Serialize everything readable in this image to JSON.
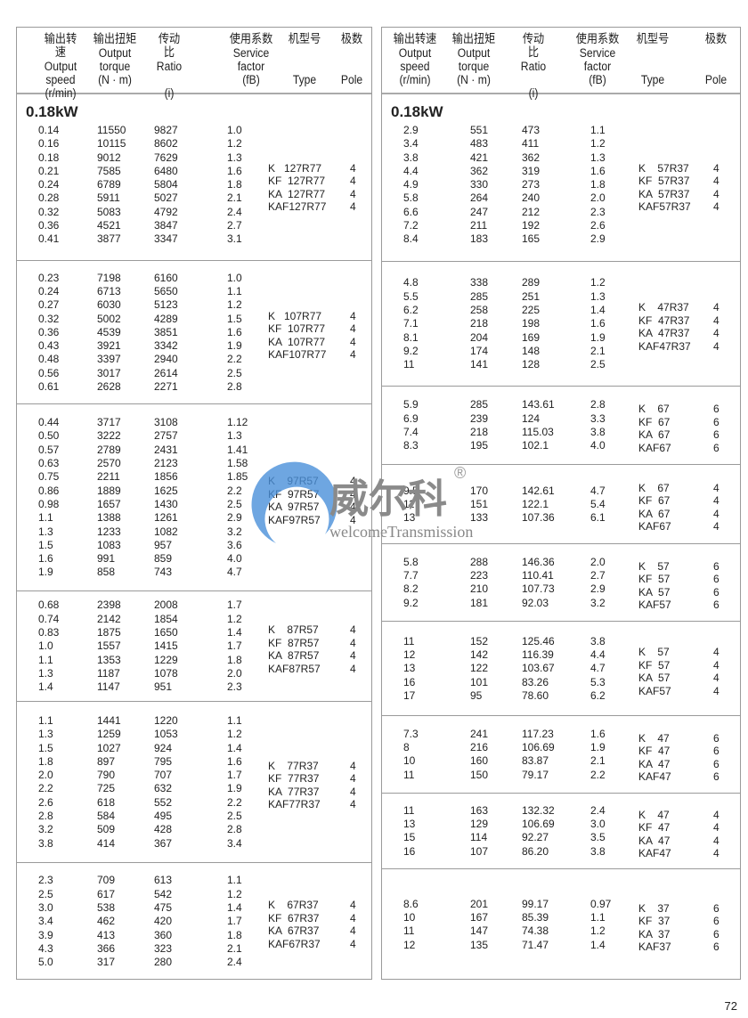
{
  "header": {
    "cn": [
      "输出转速",
      "输出扭矩",
      "传动比",
      "使用系数",
      "机型号",
      "极数"
    ],
    "en": [
      "Output\nspeed\n(r/min)",
      "Output\ntorque\n(N · m)",
      "Ratio\n\n(i)",
      "Service\nfactor\n(fB)",
      "\n\nType",
      "\n\nPole"
    ]
  },
  "power_label": "0.18kW",
  "page_number": "72",
  "logo": {
    "cn": "威尔科",
    "en": "welcomeTransmission",
    "mark": "®",
    "colors": [
      "#4a90d9",
      "#8a8a8a"
    ]
  },
  "left": [
    {
      "rows": [
        [
          "0.14",
          "11550",
          "9827",
          "1.0"
        ],
        [
          "0.16",
          "10115",
          "8602",
          "1.2"
        ],
        [
          "0.18",
          "9012",
          "7629",
          "1.3"
        ],
        [
          "0.21",
          "7585",
          "6480",
          "1.6"
        ],
        [
          "0.24",
          "6789",
          "5804",
          "1.8"
        ],
        [
          "0.28",
          "5911",
          "5027",
          "2.1"
        ],
        [
          "0.32",
          "5083",
          "4792",
          "2.4"
        ],
        [
          "0.36",
          "4521",
          "3847",
          "2.7"
        ],
        [
          "0.41",
          "3877",
          "3347",
          "3.1"
        ]
      ],
      "types": [
        "K   127R77",
        "KF  127R77",
        "KA  127R77",
        "KAF127R77"
      ],
      "pole": "4"
    },
    {
      "rows": [
        [
          "0.23",
          "7198",
          "6160",
          "1.0"
        ],
        [
          "0.24",
          "6713",
          "5650",
          "1.1"
        ],
        [
          "0.27",
          "6030",
          "5123",
          "1.2"
        ],
        [
          "0.32",
          "5002",
          "4289",
          "1.5"
        ],
        [
          "0.36",
          "4539",
          "3851",
          "1.6"
        ],
        [
          "0.43",
          "3921",
          "3342",
          "1.9"
        ],
        [
          "0.48",
          "3397",
          "2940",
          "2.2"
        ],
        [
          "0.56",
          "3017",
          "2614",
          "2.5"
        ],
        [
          "0.61",
          "2628",
          "2271",
          "2.8"
        ]
      ],
      "types": [
        "K   107R77",
        "KF  107R77",
        "KA  107R77",
        "KAF107R77"
      ],
      "pole": "4"
    },
    {
      "rows": [
        [
          "0.44",
          "3717",
          "3108",
          "1.12"
        ],
        [
          "0.50",
          "3222",
          "2757",
          "1.3"
        ],
        [
          "0.57",
          "2789",
          "2431",
          "1.41"
        ],
        [
          "0.63",
          "2570",
          "2123",
          "1.58"
        ],
        [
          "0.75",
          "2211",
          "1856",
          "1.85"
        ],
        [
          "0.86",
          "1889",
          "1625",
          "2.2"
        ],
        [
          "0.98",
          "1657",
          "1430",
          "2.5"
        ],
        [
          "1.1",
          "1388",
          "1261",
          "2.9"
        ],
        [
          "1.3",
          "1233",
          "1082",
          "3.2"
        ],
        [
          "1.5",
          "1083",
          "957",
          "3.6"
        ],
        [
          "1.6",
          "991",
          "859",
          "4.0"
        ],
        [
          "1.9",
          "858",
          "743",
          "4.7"
        ]
      ],
      "types": [
        "K    97R57",
        "KF  97R57",
        "KA  97R57",
        "KAF97R57"
      ],
      "pole": "4"
    },
    {
      "rows": [
        [
          "0.68",
          "2398",
          "2008",
          "1.7"
        ],
        [
          "0.74",
          "2142",
          "1854",
          "1.2"
        ],
        [
          "0.83",
          "1875",
          "1650",
          "1.4"
        ],
        [
          "1.0",
          "1557",
          "1415",
          "1.7"
        ],
        [
          "1.1",
          "1353",
          "1229",
          "1.8"
        ],
        [
          "1.3",
          "1187",
          "1078",
          "2.0"
        ],
        [
          "1.4",
          "1147",
          "951",
          "2.3"
        ]
      ],
      "types": [
        "K    87R57",
        "KF  87R57",
        "KA  87R57",
        "KAF87R57"
      ],
      "pole": "4"
    },
    {
      "rows": [
        [
          "1.1",
          "1441",
          "1220",
          "1.1"
        ],
        [
          "1.3",
          "1259",
          "1053",
          "1.2"
        ],
        [
          "1.5",
          "1027",
          "924",
          "1.4"
        ],
        [
          "1.8",
          "897",
          "795",
          "1.6"
        ],
        [
          "2.0",
          "790",
          "707",
          "1.7"
        ],
        [
          "2.2",
          "725",
          "632",
          "1.9"
        ],
        [
          "2.6",
          "618",
          "552",
          "2.2"
        ],
        [
          "2.8",
          "584",
          "495",
          "2.5"
        ],
        [
          "3.2",
          "509",
          "428",
          "2.8"
        ],
        [
          "3.8",
          "414",
          "367",
          "3.4"
        ]
      ],
      "types": [
        "K    77R37",
        "KF  77R37",
        "KA  77R37",
        "KAF77R37"
      ],
      "pole": "4"
    },
    {
      "rows": [
        [
          "2.3",
          "709",
          "613",
          "1.1"
        ],
        [
          "2.5",
          "617",
          "542",
          "1.2"
        ],
        [
          "3.0",
          "538",
          "475",
          "1.4"
        ],
        [
          "3.4",
          "462",
          "420",
          "1.7"
        ],
        [
          "3.9",
          "413",
          "360",
          "1.8"
        ],
        [
          "4.3",
          "366",
          "323",
          "2.1"
        ],
        [
          "5.0",
          "317",
          "280",
          "2.4"
        ]
      ],
      "types": [
        "K    67R37",
        "KF  67R37",
        "KA  67R37",
        "KAF67R37"
      ],
      "pole": "4"
    }
  ],
  "right": [
    {
      "rows": [
        [
          "2.9",
          "551",
          "473",
          "1.1"
        ],
        [
          "3.4",
          "483",
          "411",
          "1.2"
        ],
        [
          "3.8",
          "421",
          "362",
          "1.3"
        ],
        [
          "4.4",
          "362",
          "319",
          "1.6"
        ],
        [
          "4.9",
          "330",
          "273",
          "1.8"
        ],
        [
          "5.8",
          "264",
          "240",
          "2.0"
        ],
        [
          "6.6",
          "247",
          "212",
          "2.3"
        ],
        [
          "7.2",
          "211",
          "192",
          "2.6"
        ],
        [
          "8.4",
          "183",
          "165",
          "2.9"
        ]
      ],
      "types": [
        "K    57R37",
        "KF  57R37",
        "KA  57R37",
        "KAF57R37"
      ],
      "pole": "4"
    },
    {
      "rows": [
        [
          "4.8",
          "338",
          "289",
          "1.2"
        ],
        [
          "5.5",
          "285",
          "251",
          "1.3"
        ],
        [
          "6.2",
          "258",
          "225",
          "1.4"
        ],
        [
          "7.1",
          "218",
          "198",
          "1.6"
        ],
        [
          "8.1",
          "204",
          "169",
          "1.9"
        ],
        [
          "9.2",
          "174",
          "148",
          "2.1"
        ],
        [
          "11",
          "141",
          "128",
          "2.5"
        ]
      ],
      "types": [
        "K    47R37",
        "KF  47R37",
        "KA  47R37",
        "KAF47R37"
      ],
      "pole": "4"
    },
    {
      "rows": [
        [
          "5.9",
          "285",
          "143.61",
          "2.8"
        ],
        [
          "6.9",
          "239",
          "124",
          "3.3"
        ],
        [
          "7.4",
          "218",
          "115.03",
          "3.8"
        ],
        [
          "8.3",
          "195",
          "102.1",
          "4.0"
        ]
      ],
      "types": [
        "K    67",
        "KF  67",
        "KA  67",
        "KAF67"
      ],
      "pole": "6"
    },
    {
      "rows": [
        [
          "9.5",
          "170",
          "142.61",
          "4.7"
        ],
        [
          "11",
          "151",
          "122.1",
          "5.4"
        ],
        [
          "13",
          "133",
          "107.36",
          "6.1"
        ]
      ],
      "types": [
        "K    67",
        "KF  67",
        "KA  67",
        "KAF67"
      ],
      "pole": "4"
    },
    {
      "rows": [
        [
          "5.8",
          "288",
          "146.36",
          "2.0"
        ],
        [
          "7.7",
          "223",
          "110.41",
          "2.7"
        ],
        [
          "8.2",
          "210",
          "107.73",
          "2.9"
        ],
        [
          "9.2",
          "181",
          "92.03",
          "3.2"
        ]
      ],
      "types": [
        "K    57",
        "KF  57",
        "KA  57",
        "KAF57"
      ],
      "pole": "6"
    },
    {
      "rows": [
        [
          "11",
          "152",
          "125.46",
          "3.8"
        ],
        [
          "12",
          "142",
          "116.39",
          "4.4"
        ],
        [
          "13",
          "122",
          "103.67",
          "4.7"
        ],
        [
          "16",
          "101",
          "83.26",
          "5.3"
        ],
        [
          "17",
          "95",
          "78.60",
          "6.2"
        ]
      ],
      "types": [
        "K    57",
        "KF  57",
        "KA  57",
        "KAF57"
      ],
      "pole": "4"
    },
    {
      "rows": [
        [
          "7.3",
          "241",
          "117.23",
          "1.6"
        ],
        [
          "8",
          "216",
          "106.69",
          "1.9"
        ],
        [
          "10",
          "160",
          "83.87",
          "2.1"
        ],
        [
          "11",
          "150",
          "79.17",
          "2.2"
        ]
      ],
      "types": [
        "K    47",
        "KF  47",
        "KA  47",
        "KAF47"
      ],
      "pole": "6"
    },
    {
      "rows": [
        [
          "11",
          "163",
          "132.32",
          "2.4"
        ],
        [
          "13",
          "129",
          "106.69",
          "3.0"
        ],
        [
          "15",
          "114",
          "92.27",
          "3.5"
        ],
        [
          "16",
          "107",
          "86.20",
          "3.8"
        ]
      ],
      "types": [
        "K    47",
        "KF  47",
        "KA  47",
        "KAF47"
      ],
      "pole": "4"
    },
    {
      "rows": [
        [
          "8.6",
          "201",
          "99.17",
          "0.97"
        ],
        [
          "10",
          "167",
          "85.39",
          "1.1"
        ],
        [
          "11",
          "147",
          "74.38",
          "1.2"
        ],
        [
          "12",
          "135",
          "71.47",
          "1.4"
        ]
      ],
      "types": [
        "K    37",
        "KF  37",
        "KA  37",
        "KAF37"
      ],
      "pole": "6"
    }
  ]
}
